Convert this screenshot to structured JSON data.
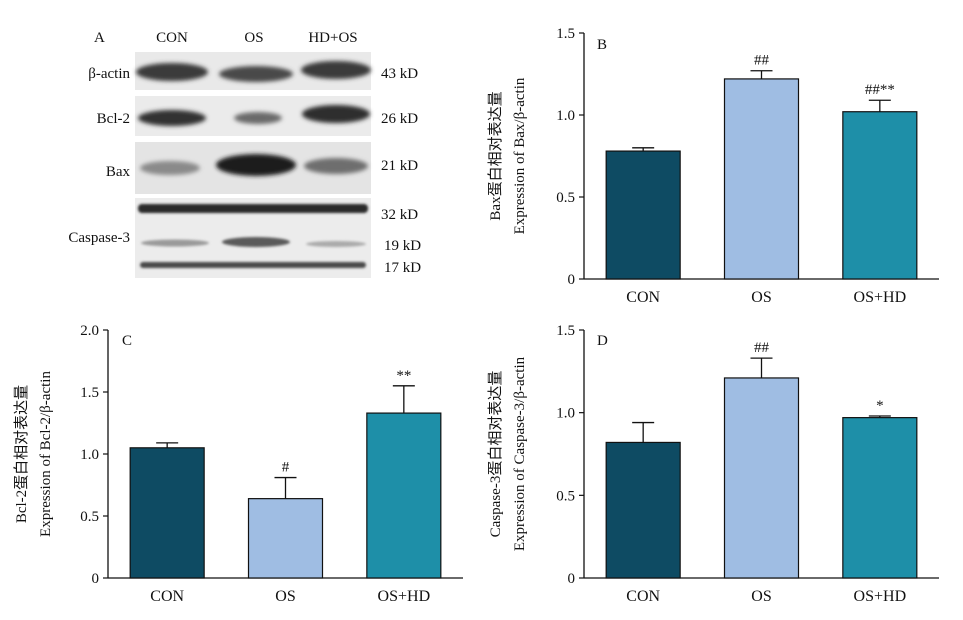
{
  "colors": {
    "con": "#0e4b63",
    "os": "#9fbde3",
    "oshd": "#1e8fa8",
    "axis": "#111111"
  },
  "blot": {
    "panel_letter": "A",
    "lanes": [
      "CON",
      "OS",
      "HD+OS"
    ],
    "rows": [
      {
        "label": "β-actin",
        "markers": [
          "43 kD"
        ]
      },
      {
        "label": "Bcl-2",
        "markers": [
          "26 kD"
        ]
      },
      {
        "label": "Bax",
        "markers": [
          "21 kD"
        ]
      },
      {
        "label": "Caspase-3",
        "markers": [
          "32 kD",
          "19 kD",
          "17 kD"
        ]
      }
    ]
  },
  "chart_data": [
    {
      "panel_letter": "B",
      "type": "bar",
      "categories": [
        "CON",
        "OS",
        "OS+HD"
      ],
      "values": [
        0.78,
        1.22,
        1.02
      ],
      "errors": [
        0.02,
        0.05,
        0.07
      ],
      "annotations": [
        "",
        "##",
        "##**"
      ],
      "ylabel_cn": "Bax蛋白相对表达量",
      "ylabel_en": "Expression of Bax/β-actin",
      "ylim": [
        0,
        1.5
      ],
      "yticks": [
        0,
        0.5,
        1.0,
        1.5
      ],
      "ytick_labels": [
        "0",
        "0.5",
        "1.0",
        "1.5"
      ]
    },
    {
      "panel_letter": "C",
      "type": "bar",
      "categories": [
        "CON",
        "OS",
        "OS+HD"
      ],
      "values": [
        1.05,
        0.64,
        1.33
      ],
      "errors": [
        0.04,
        0.17,
        0.22
      ],
      "annotations": [
        "",
        "#",
        "**"
      ],
      "ylabel_cn": "Bcl-2蛋白相对表达量",
      "ylabel_en": "Expression of Bcl-2/β-actin",
      "ylim": [
        0,
        2.0
      ],
      "yticks": [
        0,
        0.5,
        1.0,
        1.5,
        2.0
      ],
      "ytick_labels": [
        "0",
        "0.5",
        "1.0",
        "1.5",
        "2.0"
      ]
    },
    {
      "panel_letter": "D",
      "type": "bar",
      "categories": [
        "CON",
        "OS",
        "OS+HD"
      ],
      "values": [
        0.82,
        1.21,
        0.97
      ],
      "errors": [
        0.12,
        0.12,
        0.01
      ],
      "annotations": [
        "",
        "##",
        "*"
      ],
      "ylabel_cn": "Caspase-3蛋白相对表达量",
      "ylabel_en": "Expression of Caspase-3/β-actin",
      "ylim": [
        0,
        1.5
      ],
      "yticks": [
        0,
        0.5,
        1.0,
        1.5
      ],
      "ytick_labels": [
        "0",
        "0.5",
        "1.0",
        "1.5"
      ]
    }
  ]
}
